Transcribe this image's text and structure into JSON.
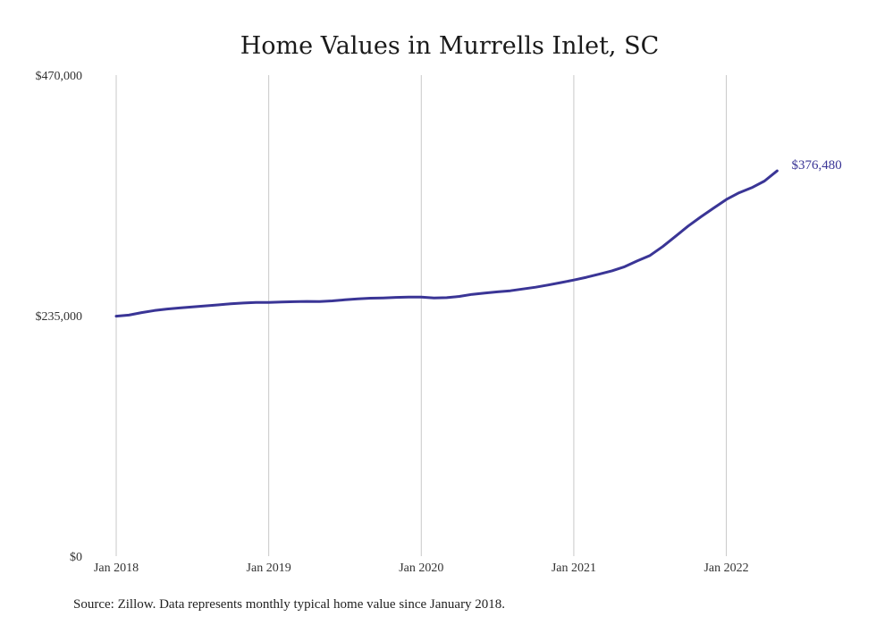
{
  "chart_data": {
    "type": "line",
    "title": "Home Values in Murrells Inlet, SC",
    "xlabel": "",
    "ylabel": "",
    "ylim": [
      0,
      470000
    ],
    "y_ticks": [
      {
        "value": 0,
        "label": "$0"
      },
      {
        "value": 235000,
        "label": "$235,000"
      },
      {
        "value": 470000,
        "label": "$470,000"
      }
    ],
    "x_ticks": [
      {
        "value": 0,
        "label": "Jan 2018"
      },
      {
        "value": 12,
        "label": "Jan 2019"
      },
      {
        "value": 24,
        "label": "Jan 2020"
      },
      {
        "value": 36,
        "label": "Jan 2021"
      },
      {
        "value": 48,
        "label": "Jan 2022"
      }
    ],
    "x_unit": "months since Jan 2018",
    "grid": {
      "vertical": true,
      "horizontal": false
    },
    "series": [
      {
        "color": "#3a3596",
        "x": [
          0,
          1,
          2,
          3,
          4,
          5,
          6,
          7,
          8,
          9,
          10,
          11,
          12,
          13,
          14,
          15,
          16,
          17,
          18,
          19,
          20,
          21,
          22,
          23,
          24,
          25,
          26,
          27,
          28,
          29,
          30,
          31,
          32,
          33,
          34,
          35,
          36,
          37,
          38,
          39,
          40,
          41,
          42,
          43,
          44,
          45,
          46,
          47,
          48,
          49,
          50,
          51,
          52
        ],
        "values": [
          234500,
          235500,
          238000,
          240000,
          241500,
          242500,
          243500,
          244500,
          245500,
          246500,
          247300,
          247800,
          247800,
          248300,
          248600,
          248900,
          248800,
          249400,
          250500,
          251400,
          252000,
          252300,
          252800,
          253200,
          253100,
          252300,
          252600,
          253800,
          255800,
          257000,
          258200,
          259300,
          261000,
          262800,
          265000,
          267300,
          269800,
          272500,
          275500,
          278800,
          282800,
          288500,
          293800,
          302500,
          312500,
          322500,
          331500,
          340000,
          348500,
          355000,
          360000,
          366500,
          376480
        ]
      }
    ],
    "end_label": "$376,480"
  },
  "footer": {
    "source": "Source: Zillow. Data represents monthly typical home value since January 2018."
  }
}
